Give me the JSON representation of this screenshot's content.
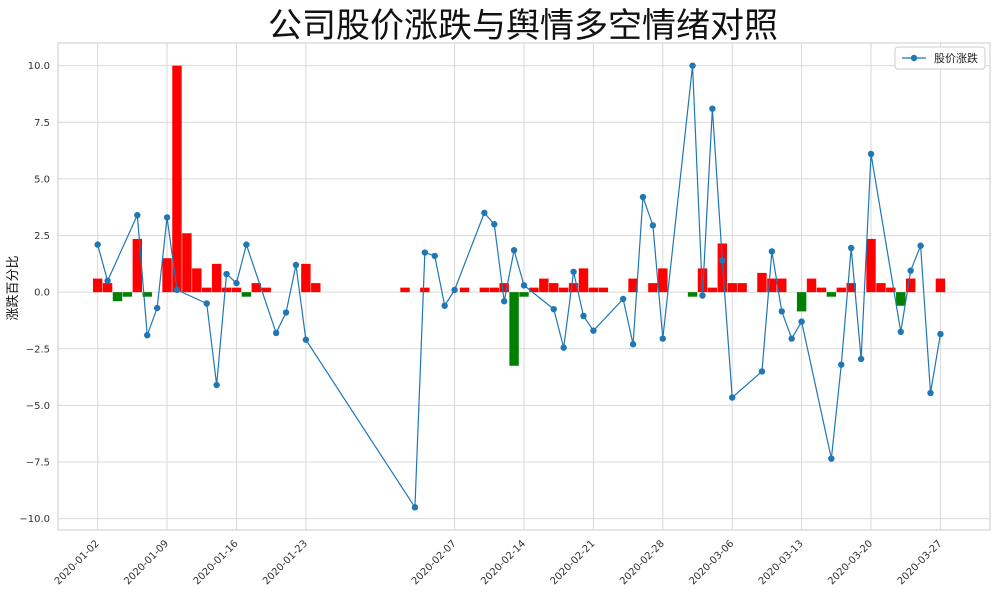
{
  "chart_data": {
    "type": "line+bar",
    "title": "公司股价涨跌与舆情多空情绪对照",
    "xlabel": "",
    "ylabel": "涨跌百分比",
    "ylim": [
      -10.5,
      11.0
    ],
    "yticks": [
      10.0,
      7.5,
      5.0,
      2.5,
      0.0,
      -2.5,
      -5.0,
      -7.5,
      -10.0
    ],
    "ytick_labels": [
      "10.0",
      "7.5",
      "5.0",
      "2.5",
      "0.0",
      "−2.5",
      "−5.0",
      "−7.5",
      "−10.0"
    ],
    "xlim": [
      "2019-12-29",
      "2020-04-01"
    ],
    "xticks": [
      "2020-01-02",
      "2020-01-09",
      "2020-01-16",
      "2020-01-23",
      "2020-02-07",
      "2020-02-14",
      "2020-02-21",
      "2020-02-28",
      "2020-03-06",
      "2020-03-13",
      "2020-03-20",
      "2020-03-27"
    ],
    "grid": true,
    "legend": {
      "position": "upper-right",
      "entries": [
        "股价涨跌"
      ]
    },
    "colors": {
      "line": "#1f77b4",
      "bull": "#ff0000",
      "bear": "#008000"
    },
    "line_series": {
      "name": "股价涨跌",
      "x": [
        "2020-01-02",
        "2020-01-03",
        "2020-01-06",
        "2020-01-07",
        "2020-01-08",
        "2020-01-09",
        "2020-01-10",
        "2020-01-13",
        "2020-01-14",
        "2020-01-15",
        "2020-01-16",
        "2020-01-17",
        "2020-01-20",
        "2020-01-21",
        "2020-01-22",
        "2020-01-23",
        "2020-02-03",
        "2020-02-04",
        "2020-02-05",
        "2020-02-06",
        "2020-02-07",
        "2020-02-10",
        "2020-02-11",
        "2020-02-12",
        "2020-02-13",
        "2020-02-14",
        "2020-02-17",
        "2020-02-18",
        "2020-02-19",
        "2020-02-20",
        "2020-02-21",
        "2020-02-24",
        "2020-02-25",
        "2020-02-26",
        "2020-02-27",
        "2020-02-28",
        "2020-03-02",
        "2020-03-03",
        "2020-03-04",
        "2020-03-05",
        "2020-03-06",
        "2020-03-09",
        "2020-03-10",
        "2020-03-11",
        "2020-03-12",
        "2020-03-13",
        "2020-03-16",
        "2020-03-17",
        "2020-03-18",
        "2020-03-19",
        "2020-03-20",
        "2020-03-23",
        "2020-03-24",
        "2020-03-25",
        "2020-03-26",
        "2020-03-27"
      ],
      "y": [
        2.1,
        0.5,
        3.4,
        -1.9,
        -0.7,
        3.3,
        0.1,
        -0.5,
        -4.1,
        0.8,
        0.4,
        2.1,
        -1.8,
        -0.9,
        1.2,
        -2.1,
        -9.5,
        1.75,
        1.6,
        -0.6,
        0.1,
        3.5,
        3.0,
        -0.4,
        1.85,
        0.3,
        -0.75,
        -2.45,
        0.9,
        -1.05,
        -1.7,
        -0.3,
        -2.3,
        4.2,
        2.95,
        -2.05,
        10.0,
        -0.15,
        8.1,
        1.4,
        -4.65,
        -3.5,
        1.8,
        -0.85,
        -2.05,
        -1.3,
        -7.35,
        -3.2,
        1.95,
        -2.95,
        6.1,
        -1.75,
        0.95,
        2.05,
        -4.45,
        -1.85
      ]
    },
    "bar_series": {
      "x": [
        "2020-01-02",
        "2020-01-03",
        "2020-01-04",
        "2020-01-05",
        "2020-01-06",
        "2020-01-07",
        "2020-01-09",
        "2020-01-10",
        "2020-01-11",
        "2020-01-12",
        "2020-01-13",
        "2020-01-14",
        "2020-01-15",
        "2020-01-16",
        "2020-01-17",
        "2020-01-18",
        "2020-01-19",
        "2020-01-23",
        "2020-01-24",
        "2020-02-02",
        "2020-02-04",
        "2020-02-08",
        "2020-02-10",
        "2020-02-11",
        "2020-02-12",
        "2020-02-13",
        "2020-02-14",
        "2020-02-15",
        "2020-02-16",
        "2020-02-17",
        "2020-02-18",
        "2020-02-19",
        "2020-02-20",
        "2020-02-21",
        "2020-02-22",
        "2020-02-25",
        "2020-02-27",
        "2020-02-28",
        "2020-03-02",
        "2020-03-03",
        "2020-03-04",
        "2020-03-05",
        "2020-03-06",
        "2020-03-07",
        "2020-03-09",
        "2020-03-10",
        "2020-03-11",
        "2020-03-13",
        "2020-03-14",
        "2020-03-15",
        "2020-03-16",
        "2020-03-17",
        "2020-03-18",
        "2020-03-20",
        "2020-03-21",
        "2020-03-22",
        "2020-03-23",
        "2020-03-24",
        "2020-03-27"
      ],
      "values": [
        0.6,
        0.4,
        -0.4,
        -0.2,
        2.35,
        -0.2,
        1.5,
        10.0,
        2.6,
        1.05,
        0.2,
        1.25,
        0.2,
        0.2,
        -0.2,
        0.4,
        0.2,
        1.25,
        0.4,
        0.2,
        0.2,
        0.2,
        0.2,
        0.2,
        0.4,
        -3.25,
        -0.2,
        0.2,
        0.6,
        0.4,
        0.2,
        0.4,
        1.05,
        0.2,
        0.2,
        0.6,
        0.4,
        1.05,
        -0.2,
        1.05,
        0.2,
        2.15,
        0.4,
        0.4,
        0.85,
        0.6,
        0.6,
        -0.85,
        0.6,
        0.2,
        -0.2,
        0.2,
        0.4,
        2.35,
        0.4,
        0.2,
        -0.6,
        0.6,
        0.6
      ]
    }
  }
}
